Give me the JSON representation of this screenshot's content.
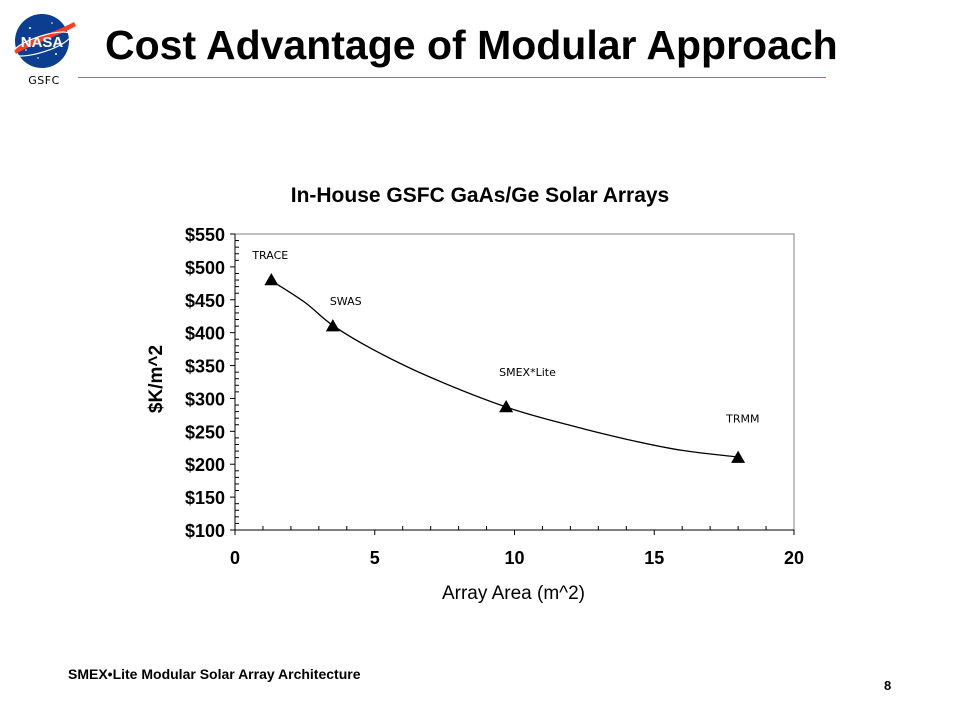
{
  "slide": {
    "title": "Cost Advantage of Modular Approach",
    "logo_text": "NASA",
    "logo_caption": "GSFC",
    "footer_text": "SMEX•Lite Modular Solar Array Architecture",
    "page_number": "8"
  },
  "chart_data": {
    "type": "line",
    "title": "In-House GSFC GaAs/Ge Solar Arrays",
    "xlabel": "Array Area (m^2)",
    "ylabel": "$K/m^2",
    "xlim": [
      0,
      20
    ],
    "ylim": [
      100,
      550
    ],
    "x_ticks": [
      0,
      5,
      10,
      15,
      20
    ],
    "x_tick_labels": [
      "0",
      "5",
      "10",
      "15",
      "20"
    ],
    "y_ticks": [
      100,
      150,
      200,
      250,
      300,
      350,
      400,
      450,
      500,
      550
    ],
    "y_tick_labels": [
      "$100",
      "$150",
      "$200",
      "$250",
      "$300",
      "$350",
      "$400",
      "$450",
      "$500",
      "$550"
    ],
    "grid": false,
    "legend": "none",
    "points": [
      {
        "x": 1.3,
        "y": 480,
        "label": "TRACE"
      },
      {
        "x": 3.5,
        "y": 410,
        "label": "SWAS"
      },
      {
        "x": 9.7,
        "y": 287,
        "label": "SMEX*Lite"
      },
      {
        "x": 18.0,
        "y": 210,
        "label": "TRMM"
      }
    ],
    "trend_curve": [
      {
        "x": 1.3,
        "y": 479
      },
      {
        "x": 2.5,
        "y": 446
      },
      {
        "x": 3.5,
        "y": 411
      },
      {
        "x": 5,
        "y": 373
      },
      {
        "x": 7,
        "y": 332
      },
      {
        "x": 9.7,
        "y": 287
      },
      {
        "x": 12,
        "y": 259
      },
      {
        "x": 14,
        "y": 238
      },
      {
        "x": 16,
        "y": 221
      },
      {
        "x": 18.0,
        "y": 211
      }
    ],
    "colors": {
      "marker": "#000000",
      "line": "#000000",
      "plot_border": "#808080"
    }
  }
}
